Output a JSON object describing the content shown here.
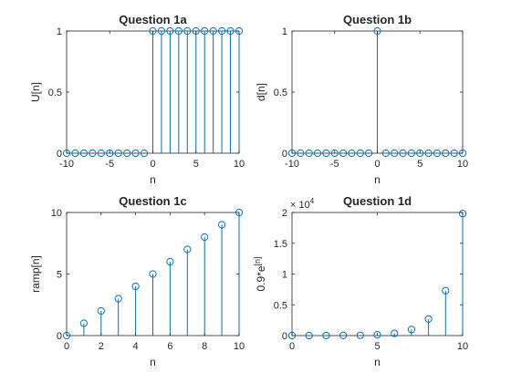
{
  "colors": {
    "series": "#0072BD",
    "axes": "#262626",
    "background": "#ffffff"
  },
  "chart_data": [
    {
      "type": "stem",
      "title": "Question 1a",
      "xlabel": "n",
      "ylabel": "U[n]",
      "xlim": [
        -10,
        10
      ],
      "ylim": [
        0,
        1
      ],
      "xticks": [
        -10,
        -5,
        0,
        5,
        10
      ],
      "yticks": [
        0,
        0.5,
        1
      ],
      "ytick_labels": [
        "0",
        "0.5",
        "1"
      ],
      "x": [
        -10,
        -9,
        -8,
        -7,
        -6,
        -5,
        -4,
        -3,
        -2,
        -1,
        0,
        1,
        2,
        3,
        4,
        5,
        6,
        7,
        8,
        9,
        10
      ],
      "y": [
        0,
        0,
        0,
        0,
        0,
        0,
        0,
        0,
        0,
        0,
        1,
        1,
        1,
        1,
        1,
        1,
        1,
        1,
        1,
        1,
        1
      ]
    },
    {
      "type": "stem",
      "title": "Question 1b",
      "xlabel": "n",
      "ylabel": "d[n]",
      "xlim": [
        -10,
        10
      ],
      "ylim": [
        0,
        1
      ],
      "xticks": [
        -10,
        -5,
        0,
        5,
        10
      ],
      "yticks": [
        0,
        0.5,
        1
      ],
      "ytick_labels": [
        "0",
        "0.5",
        "1"
      ],
      "x": [
        -10,
        -9,
        -8,
        -7,
        -6,
        -5,
        -4,
        -3,
        -2,
        -1,
        0,
        1,
        2,
        3,
        4,
        5,
        6,
        7,
        8,
        9,
        10
      ],
      "y": [
        0,
        0,
        0,
        0,
        0,
        0,
        0,
        0,
        0,
        0,
        1,
        0,
        0,
        0,
        0,
        0,
        0,
        0,
        0,
        0,
        0
      ]
    },
    {
      "type": "stem",
      "title": "Question 1c",
      "xlabel": "n",
      "ylabel": "ramp[n]",
      "xlim": [
        0,
        10
      ],
      "ylim": [
        0,
        10
      ],
      "xticks": [
        0,
        2,
        4,
        6,
        8,
        10
      ],
      "yticks": [
        0,
        5,
        10
      ],
      "ytick_labels": [
        "0",
        "5",
        "10"
      ],
      "x": [
        0,
        1,
        2,
        3,
        4,
        5,
        6,
        7,
        8,
        9,
        10
      ],
      "y": [
        0,
        1,
        2,
        3,
        4,
        5,
        6,
        7,
        8,
        9,
        10
      ]
    },
    {
      "type": "stem",
      "title": "Question 1d",
      "xlabel": "n",
      "ylabel": "0.9*e",
      "ylabel_superscript": "[n]",
      "exponent_label": "× 10",
      "exponent_power": "4",
      "xlim": [
        0,
        10
      ],
      "ylim": [
        0,
        20000
      ],
      "xticks": [
        0,
        5,
        10
      ],
      "yticks": [
        0,
        5000,
        10000,
        15000,
        20000
      ],
      "ytick_labels": [
        "0",
        "0.5",
        "1",
        "1.5",
        "2"
      ],
      "x": [
        0,
        1,
        2,
        3,
        4,
        5,
        6,
        7,
        8,
        9,
        10
      ],
      "y": [
        0.9,
        2.4,
        6.7,
        18.1,
        49.1,
        133.6,
        363.1,
        987,
        2683,
        7293,
        19824
      ]
    }
  ]
}
